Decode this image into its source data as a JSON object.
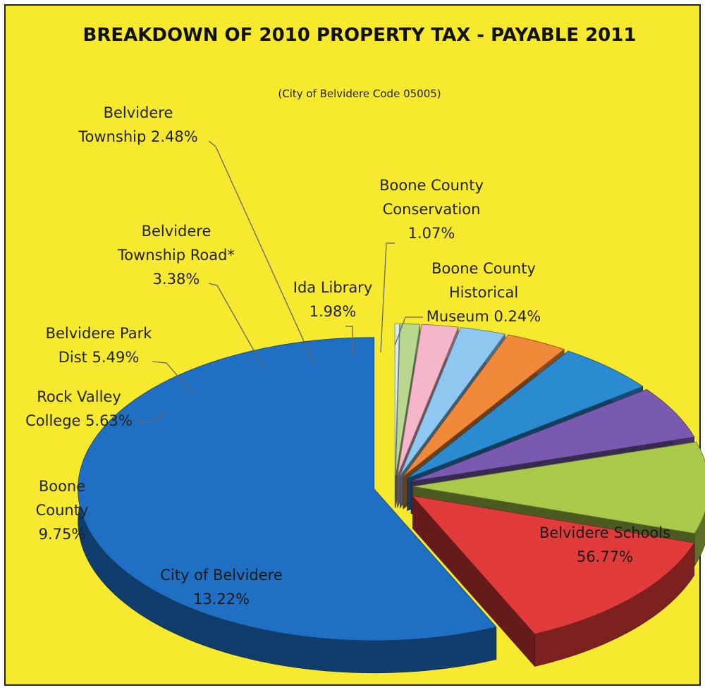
{
  "chart_data": {
    "type": "pie",
    "title": "BREAKDOWN OF 2010 PROPERTY TAX - PAYABLE 2011",
    "subtitle": "(City of Belvidere Code 05005)",
    "slices": [
      {
        "label": "Belvidere Schools",
        "value": 56.77,
        "value_text": "56.77%",
        "color": "#1f6fc4"
      },
      {
        "label": "City of Belvidere",
        "value": 13.22,
        "value_text": "13.22%",
        "color": "#e23b3b"
      },
      {
        "label": "Boone County",
        "value": 9.75,
        "value_text": "9.75%",
        "color": "#a9c94a"
      },
      {
        "label": "Rock Valley College",
        "value": 5.63,
        "value_text": "5.63%",
        "color": "#7a5ab0"
      },
      {
        "label": "Belvidere Park Dist",
        "value": 5.49,
        "value_text": "5.49%",
        "color": "#2b8bd0"
      },
      {
        "label": "Belvidere Township Road*",
        "value": 3.38,
        "value_text": "3.38%",
        "color": "#f08a3a"
      },
      {
        "label": "Belvidere Township",
        "value": 2.48,
        "value_text": "2.48%",
        "color": "#8ec8f0"
      },
      {
        "label": "Ida Library",
        "value": 1.98,
        "value_text": "1.98%",
        "color": "#f4b6c8"
      },
      {
        "label": "Boone County Conservation",
        "value": 1.07,
        "value_text": "1.07%",
        "color": "#b8d890"
      },
      {
        "label": "Boone County Historical Museum",
        "value": 0.24,
        "value_text": "0.24%",
        "color": "#d8eef8"
      }
    ],
    "label_lines": {
      "schools": [
        "Belvidere Schools",
        "56.77%"
      ],
      "city": [
        "City of Belvidere",
        "13.22%"
      ],
      "county": [
        "Boone",
        "County",
        "9.75%"
      ],
      "college": [
        "Rock Valley",
        "College 5.63%"
      ],
      "park": [
        "Belvidere Park",
        "Dist 5.49%"
      ],
      "road": [
        "Belvidere",
        "Township Road*",
        "3.38%"
      ],
      "township": [
        "Belvidere",
        "Township 2.48%"
      ],
      "library": [
        "Ida Library",
        "1.98%"
      ],
      "conservation": [
        "Boone County",
        "Conservation",
        "1.07%"
      ],
      "museum": [
        "Boone County",
        "Historical",
        "Museum 0.24%"
      ]
    }
  }
}
